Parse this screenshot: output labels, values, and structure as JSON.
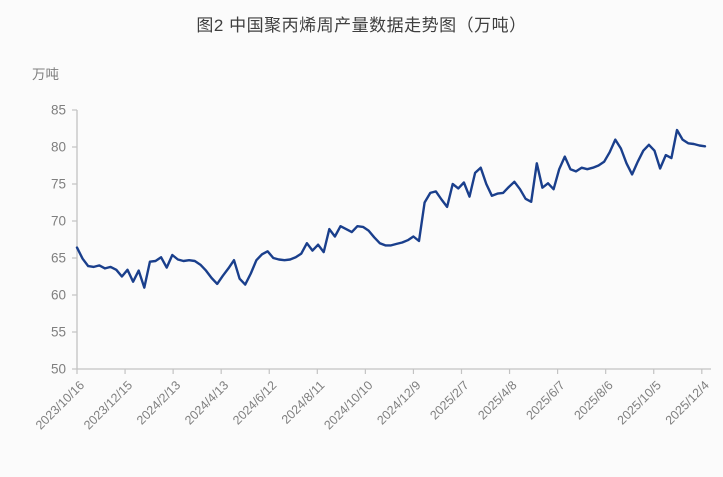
{
  "title": "图2  中国聚丙烯周产量数据走势图（万吨）",
  "chart_data": {
    "type": "line",
    "title": "图2  中国聚丙烯周产量数据走势图（万吨）",
    "unit_label": "万吨",
    "ylim": [
      50,
      85
    ],
    "y_ticks": [
      50,
      55,
      60,
      65,
      70,
      75,
      80,
      85
    ],
    "x_tick_labels": [
      "2023/10/16",
      "2023/12/15",
      "2024/2/13",
      "2024/4/13",
      "2024/6/12",
      "2024/8/11",
      "2024/10/10",
      "2024/12/9",
      "2025/2/7",
      "2025/4/8",
      "2025/6/7",
      "2025/8/6",
      "2025/10/5",
      "2025/12/4"
    ],
    "x_tick_interval_days": 60,
    "grid": "off",
    "legend": "none",
    "series": [
      {
        "name": "中国聚丙烯周产量(万吨)",
        "x_start_date": "2023/10/16",
        "x_interval_days": 7,
        "color": "#1a3f8c",
        "values": [
          66.4,
          64.9,
          63.9,
          63.8,
          64.0,
          63.6,
          63.8,
          63.4,
          62.5,
          63.4,
          61.8,
          63.3,
          61.0,
          64.5,
          64.6,
          65.1,
          63.7,
          65.4,
          64.8,
          64.6,
          64.7,
          64.6,
          64.1,
          63.3,
          62.3,
          61.5,
          62.6,
          63.6,
          64.7,
          62.2,
          61.4,
          62.9,
          64.7,
          65.5,
          65.9,
          65.0,
          64.8,
          64.7,
          64.8,
          65.1,
          65.6,
          67.0,
          66.0,
          66.8,
          65.8,
          68.9,
          67.9,
          69.3,
          68.9,
          68.5,
          69.3,
          69.2,
          68.7,
          67.8,
          67.0,
          66.7,
          66.7,
          66.9,
          67.1,
          67.4,
          67.9,
          67.3,
          72.5,
          73.8,
          74.0,
          72.9,
          71.9,
          75.0,
          74.4,
          75.2,
          73.3,
          76.5,
          77.2,
          75.0,
          73.4,
          73.7,
          73.8,
          74.6,
          75.3,
          74.3,
          73.0,
          72.6,
          77.8,
          74.5,
          75.1,
          74.3,
          77.0,
          78.7,
          77.0,
          76.7,
          77.2,
          77.0,
          77.2,
          77.5,
          78.0,
          79.3,
          81.0,
          79.8,
          77.8,
          76.3,
          78.0,
          79.5,
          80.3,
          79.5,
          77.1,
          78.9,
          78.5,
          82.3,
          81.0,
          80.5,
          80.4,
          80.2,
          80.1
        ]
      }
    ],
    "colors": {
      "line": "#1a3f8c",
      "axis": "#c3c3c3",
      "tick_label": "#7f7f7f",
      "title": "#3f3f3f",
      "background": "#fbfbfb"
    }
  }
}
